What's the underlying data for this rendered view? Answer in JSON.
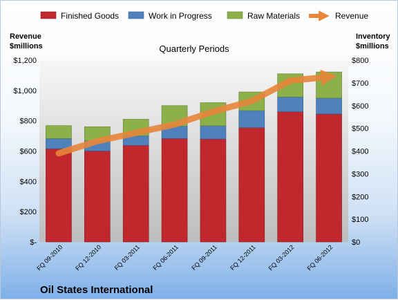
{
  "company": "Oil States International",
  "chart_data": {
    "type": "bar",
    "stacked": true,
    "title": "Quarterly Periods",
    "categories": [
      "FQ 09-2010",
      "FQ 12-2010",
      "FQ 03-2011",
      "FQ 06-2011",
      "FQ 09-2011",
      "FQ 12-2011",
      "FQ 03-2012",
      "FQ 06-2012"
    ],
    "y_left": {
      "label": [
        "Revenue",
        "$millions"
      ],
      "range": [
        0,
        1200
      ],
      "ticks": [
        {
          "value": 0,
          "label": "$-"
        },
        {
          "value": 200,
          "label": "$200"
        },
        {
          "value": 400,
          "label": "$400"
        },
        {
          "value": 600,
          "label": "$600"
        },
        {
          "value": 800,
          "label": "$800"
        },
        {
          "value": 1000,
          "label": "$1,000"
        },
        {
          "value": 1200,
          "label": "$1,200"
        }
      ]
    },
    "y_right": {
      "label": [
        "Inventory",
        "$millions"
      ],
      "range": [
        0,
        800
      ],
      "ticks": [
        {
          "value": 0,
          "label": "$0"
        },
        {
          "value": 100,
          "label": "$100"
        },
        {
          "value": 200,
          "label": "$200"
        },
        {
          "value": 300,
          "label": "$300"
        },
        {
          "value": 400,
          "label": "$400"
        },
        {
          "value": 500,
          "label": "$500"
        },
        {
          "value": 600,
          "label": "$600"
        },
        {
          "value": 700,
          "label": "$700"
        },
        {
          "value": 800,
          "label": "$800"
        }
      ]
    },
    "series": [
      {
        "name": "Finished Goods",
        "axis": "right",
        "color": "#c0282d",
        "values": [
          410,
          400,
          425,
          455,
          453,
          503,
          573,
          563
        ]
      },
      {
        "name": "Work in Progress",
        "axis": "right",
        "color": "#4f81bd",
        "values": [
          45,
          45,
          42,
          55,
          58,
          75,
          65,
          70
        ]
      },
      {
        "name": "Raw Materials",
        "axis": "right",
        "color": "#8cb04a",
        "values": [
          57,
          62,
          73,
          90,
          102,
          82,
          102,
          115
        ]
      },
      {
        "name": "Revenue",
        "axis": "left",
        "type": "line",
        "color": "#e8863a",
        "values": [
          585,
          665,
          720,
          775,
          860,
          930,
          1065,
          1090
        ]
      }
    ],
    "legend_position": "top",
    "grid": false
  }
}
